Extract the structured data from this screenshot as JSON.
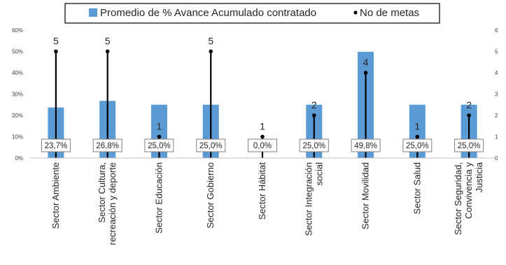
{
  "chart_data": {
    "type": "bar",
    "categories": [
      "Sector Ambiente",
      "Sector Cultura, recreación y deporte",
      "Sector Educación",
      "Sector Gobierno",
      "Sector Hábitat",
      "Sector Integración social",
      "Sector Movilidad",
      "Sector Salud",
      "Sector Seguridad, Convivencia y Justicia"
    ],
    "category_lines": [
      [
        "Sector Ambiente"
      ],
      [
        "Sector Cultura,",
        "recreación y deporte"
      ],
      [
        "Sector Educación"
      ],
      [
        "Sector Gobierno"
      ],
      [
        "Sector Hábitat"
      ],
      [
        "Sector Integración",
        "social"
      ],
      [
        "Sector Movilidad"
      ],
      [
        "Sector Salud"
      ],
      [
        "Sector Seguridad,",
        "Convivencia y",
        "Justicia"
      ]
    ],
    "series": [
      {
        "name": "Promedio de % Avance Acumulado contratado",
        "type": "bar",
        "axis": "left",
        "color": "#5B9BD5",
        "values": [
          23.7,
          26.8,
          25.0,
          25.0,
          0.0,
          25.0,
          49.8,
          25.0,
          25.0
        ],
        "labels": [
          "23,7%",
          "26,8%",
          "25,0%",
          "25,0%",
          "0,0%",
          "25,0%",
          "49,8%",
          "25,0%",
          "25,0%"
        ]
      },
      {
        "name": "No de metas",
        "type": "dropline",
        "axis": "right",
        "color": "#000000",
        "values": [
          5,
          5,
          1,
          5,
          1,
          2,
          4,
          1,
          2
        ],
        "labels": [
          "5",
          "5",
          "1",
          "5",
          "1",
          "2",
          "4",
          "1",
          "2"
        ]
      }
    ],
    "y_left": {
      "min": 0,
      "max": 60,
      "ticks": [
        "0%",
        "10%",
        "20%",
        "30%",
        "40%",
        "50%",
        "60%"
      ]
    },
    "y_right": {
      "min": 0,
      "max": 6,
      "ticks": [
        "0",
        "1",
        "2",
        "3",
        "4",
        "5",
        "6"
      ]
    },
    "legend_position": "top",
    "grid": false
  }
}
